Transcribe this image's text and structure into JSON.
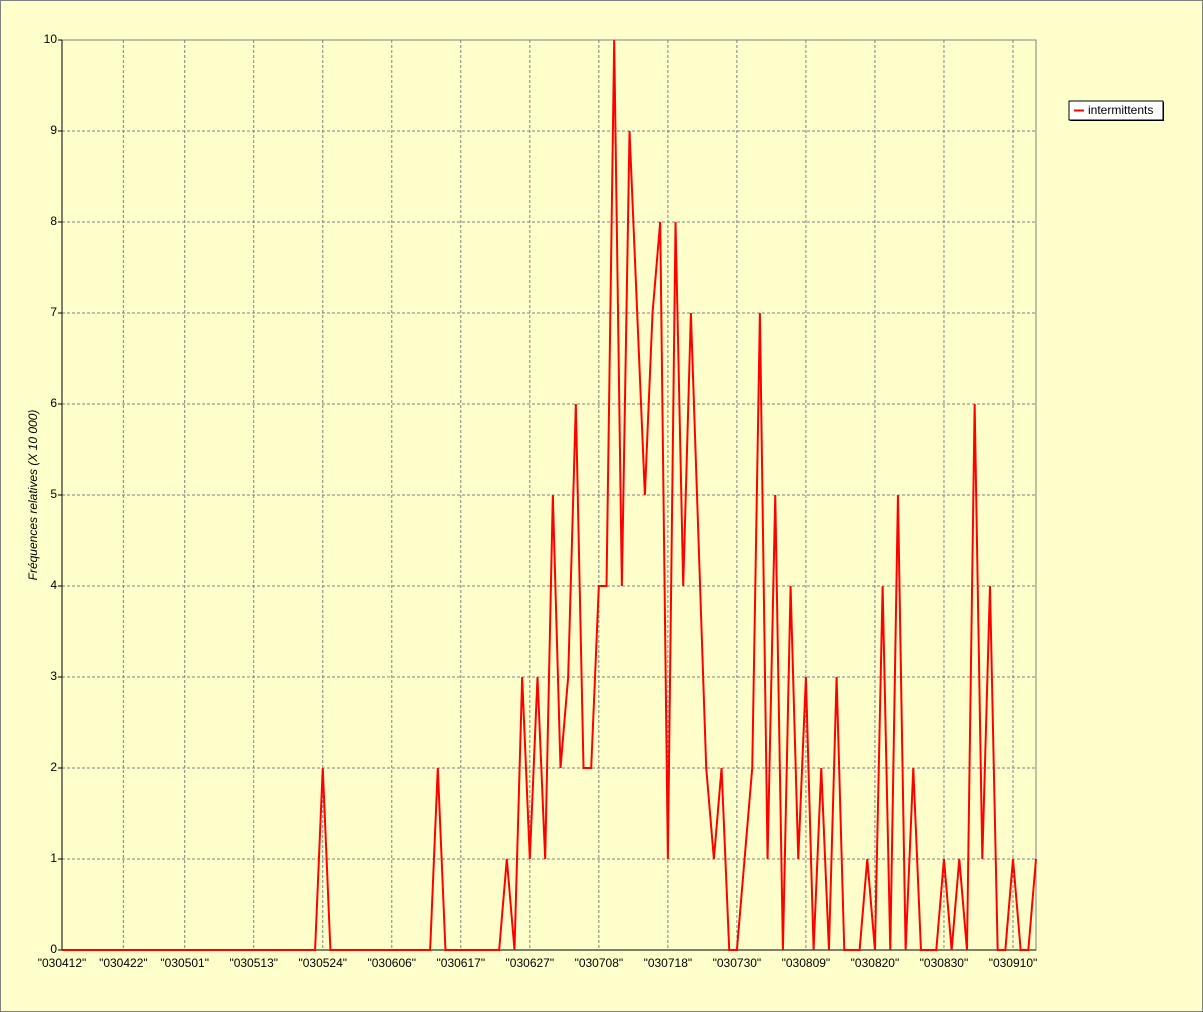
{
  "chart_data": {
    "type": "line",
    "y_label": "Fréquences relatives (X 10 000)",
    "categories": [
      "\"030412\"",
      null,
      null,
      null,
      null,
      null,
      null,
      null,
      "\"030422\"",
      null,
      null,
      null,
      null,
      null,
      null,
      null,
      "\"030501\"",
      null,
      null,
      null,
      null,
      null,
      null,
      null,
      null,
      "\"030513\"",
      null,
      null,
      null,
      null,
      null,
      null,
      null,
      null,
      "\"030524\"",
      null,
      null,
      null,
      null,
      null,
      null,
      null,
      null,
      "\"030606\"",
      null,
      null,
      null,
      null,
      null,
      null,
      null,
      null,
      "\"030617\"",
      null,
      null,
      null,
      null,
      null,
      null,
      null,
      null,
      "\"030627\"",
      null,
      null,
      null,
      null,
      null,
      null,
      null,
      null,
      "\"030708\"",
      null,
      null,
      null,
      null,
      null,
      null,
      null,
      null,
      "\"030718\"",
      null,
      null,
      null,
      null,
      null,
      null,
      null,
      null,
      "\"030730\"",
      null,
      null,
      null,
      null,
      null,
      null,
      null,
      null,
      "\"030809\"",
      null,
      null,
      null,
      null,
      null,
      null,
      null,
      null,
      "\"030820\"",
      null,
      null,
      null,
      null,
      null,
      null,
      null,
      null,
      "\"030830\"",
      null,
      null,
      null,
      null,
      null,
      null,
      null,
      null,
      "\"030910\"",
      null,
      null,
      null
    ],
    "series": [
      {
        "name": "intermittents",
        "color": "#ff0000",
        "values": [
          0,
          0,
          0,
          0,
          0,
          0,
          0,
          0,
          0,
          0,
          0,
          0,
          0,
          0,
          0,
          0,
          0,
          0,
          0,
          0,
          0,
          0,
          0,
          0,
          0,
          0,
          0,
          0,
          0,
          0,
          0,
          0,
          0,
          0,
          2,
          0,
          0,
          0,
          0,
          0,
          0,
          0,
          0,
          0,
          0,
          0,
          0,
          0,
          0,
          2,
          0,
          0,
          0,
          0,
          0,
          0,
          0,
          0,
          1,
          0,
          3,
          1,
          3,
          1,
          5,
          2,
          3,
          6,
          2,
          2,
          4,
          4,
          10,
          4,
          9,
          7,
          5,
          7,
          8,
          1,
          8,
          4,
          7,
          4.5,
          2,
          1,
          2,
          0,
          0,
          1,
          2,
          7,
          1,
          5,
          0,
          4,
          1,
          3,
          0,
          2,
          0,
          3,
          0,
          0,
          0,
          1,
          0,
          4,
          0,
          5,
          0,
          2,
          0,
          0,
          0,
          1,
          0,
          1,
          0,
          6,
          1,
          4,
          0,
          0,
          1,
          0,
          0,
          1
        ]
      }
    ],
    "ylim": [
      0,
      10
    ],
    "yticks": [
      0,
      1,
      2,
      3,
      4,
      5,
      6,
      7,
      8,
      9,
      10
    ],
    "grid": true,
    "legend": "right",
    "background": "#ffffcc"
  }
}
